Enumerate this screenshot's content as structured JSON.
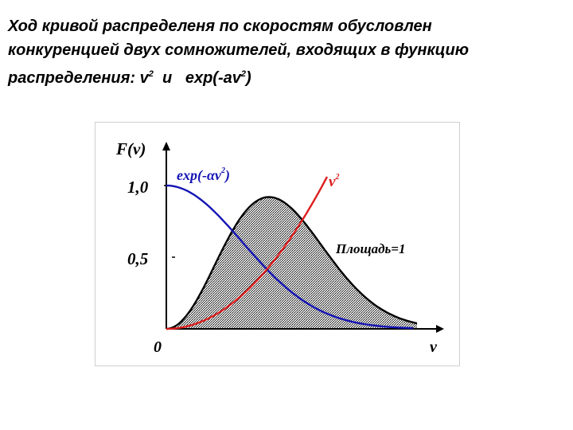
{
  "heading": {
    "line1": "Ход кривой распределеня по скоростям обусловлен",
    "line2": "конкуренцией двух сомножителей, входящих в функцию",
    "line3_prefix": "распределения:  v",
    "line3_exp": "2",
    "line3_mid": "  и   exp(-av",
    "line3_exp2": "2",
    "line3_suffix": ")"
  },
  "figure": {
    "y_axis_label": "F(v)",
    "x_axis_label": "v",
    "origin_label": "0",
    "tick_1_0": "1,0",
    "tick_0_5": "0,5",
    "exp_label_prefix": "exp(-αv",
    "exp_label_exp": "2",
    "exp_label_suffix": ")",
    "v2_label": "v",
    "v2_label_exp": "2",
    "area_label": "Площадь=1",
    "colors": {
      "exp_curve": "#1414b4",
      "v2_curve": "#dc1e1e",
      "product_curve": "#000000"
    }
  }
}
